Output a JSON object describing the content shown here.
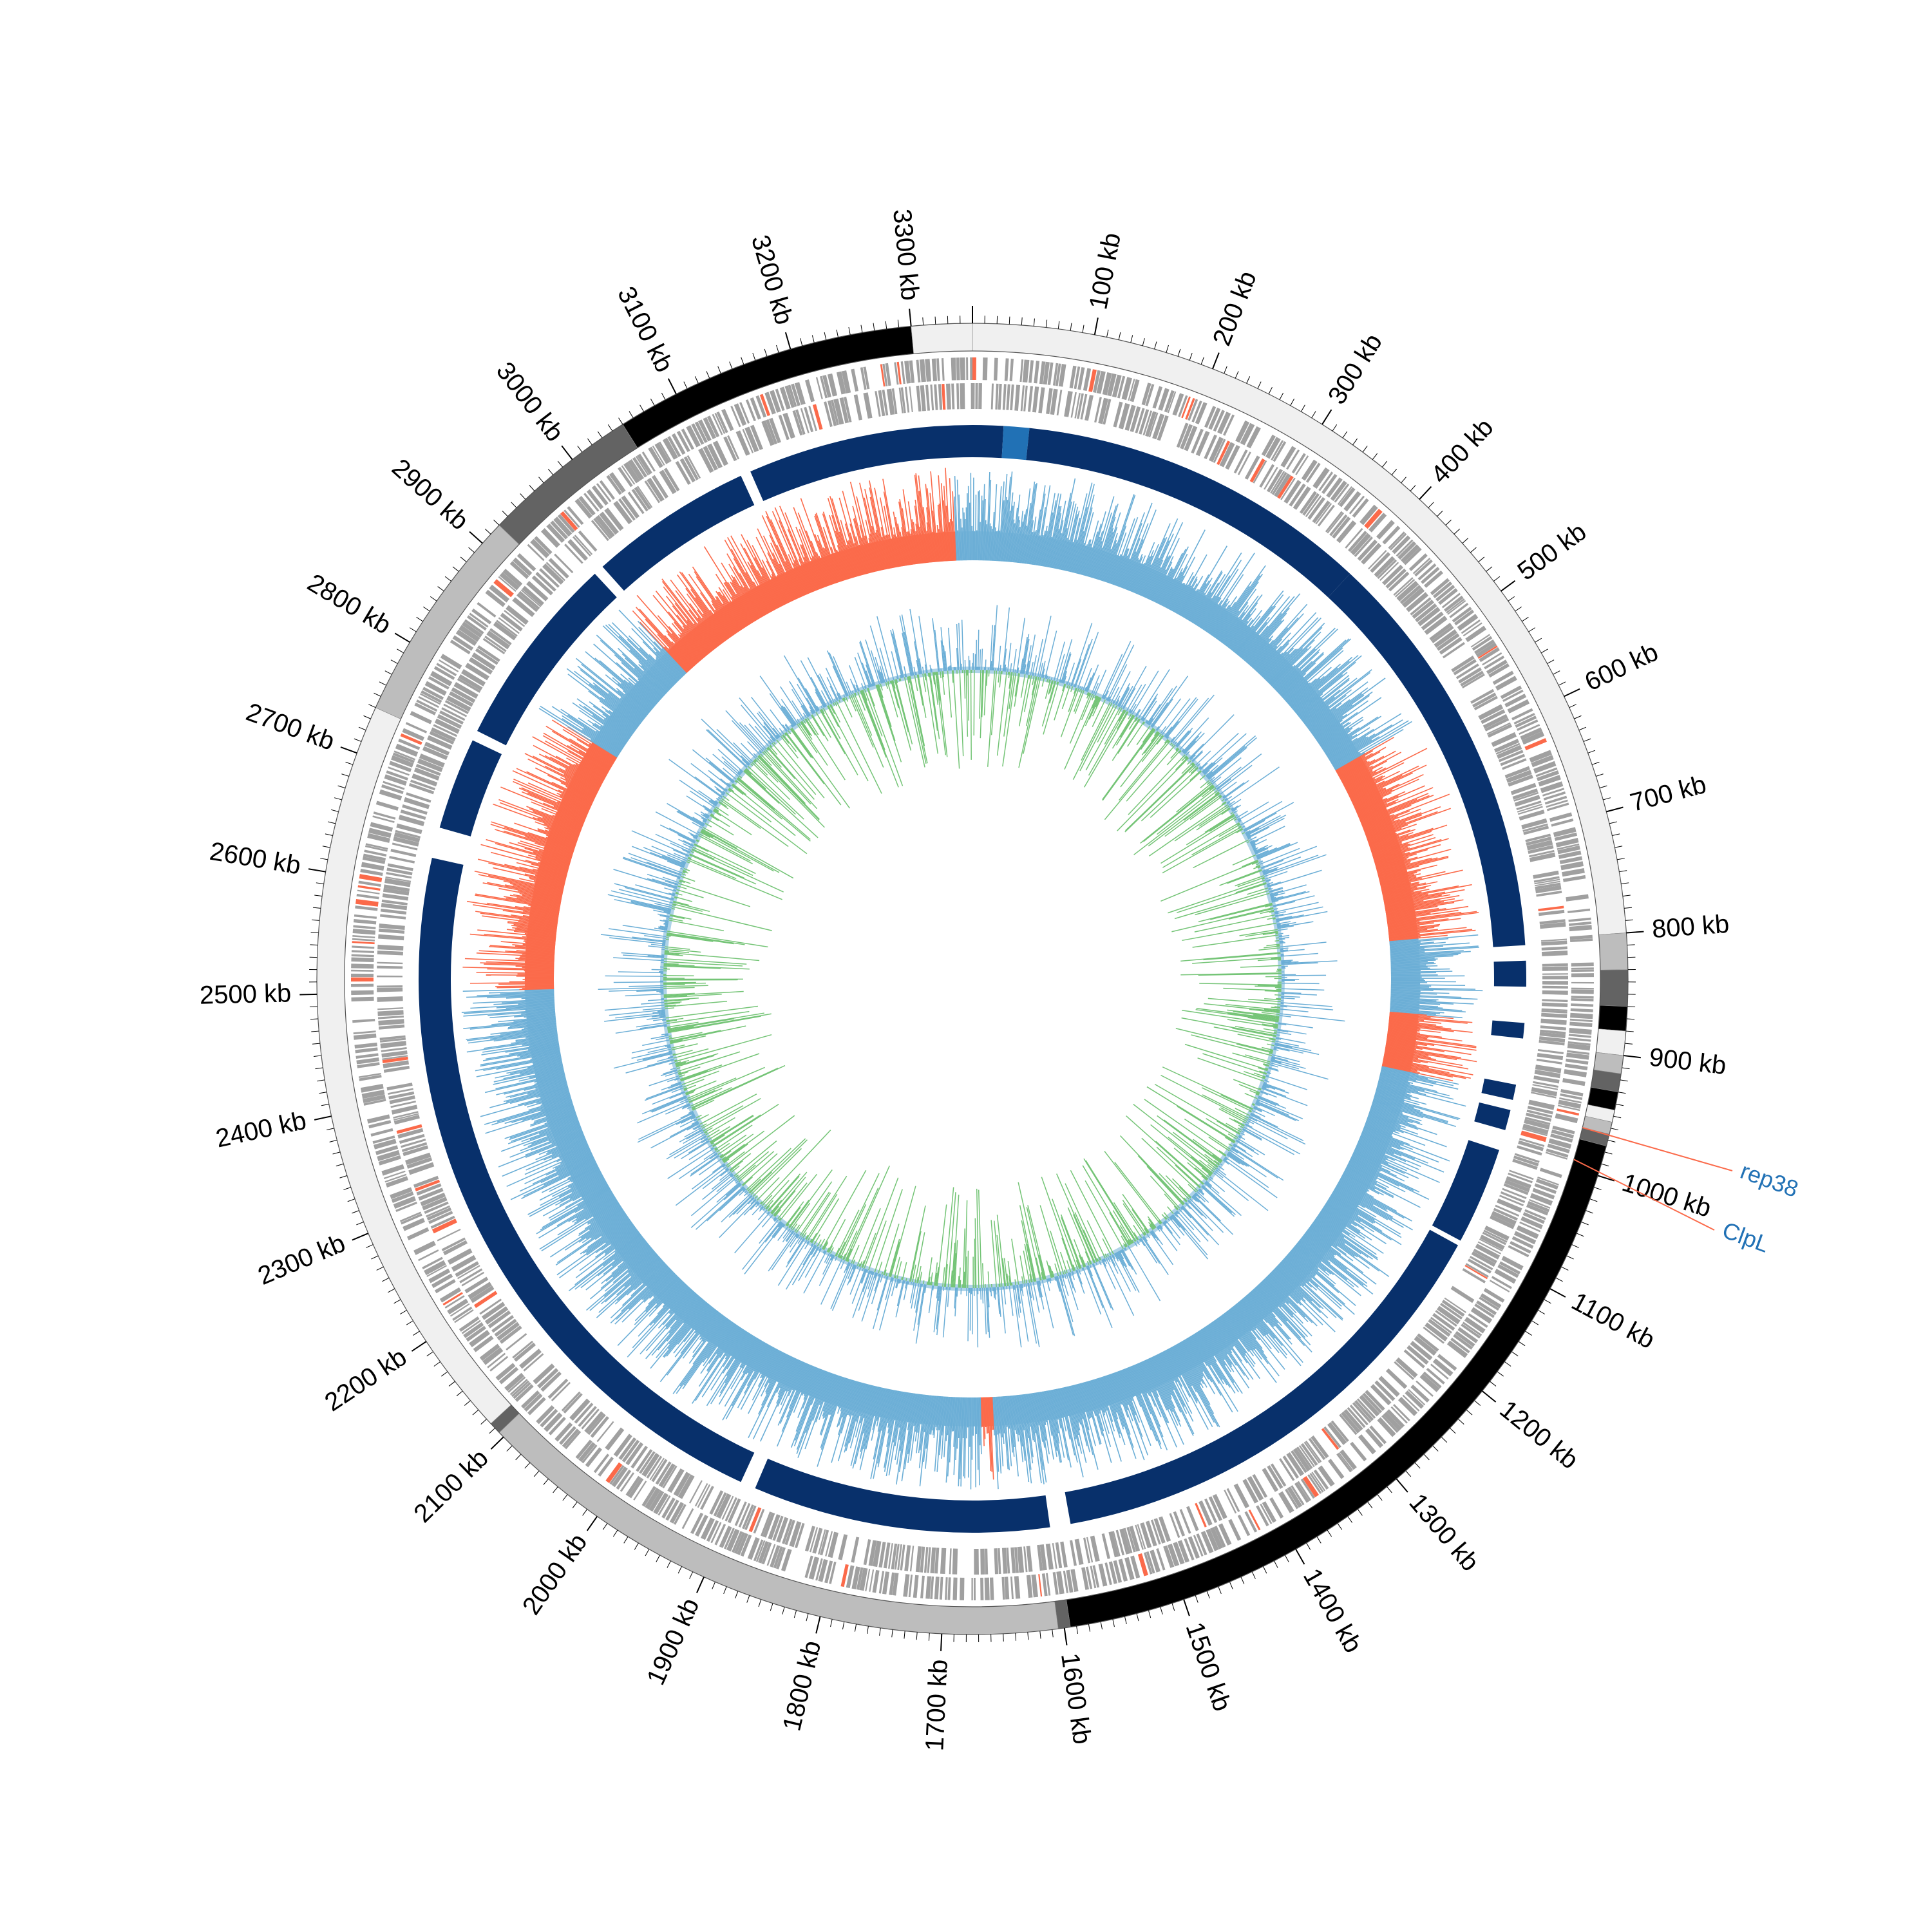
{
  "genome": {
    "length_kb": 3350,
    "tick_labels": [
      "100 kb",
      "200 kb",
      "300 kb",
      "400 kb",
      "500 kb",
      "600 kb",
      "700 kb",
      "800 kb",
      "900 kb",
      "1000 kb",
      "1100 kb",
      "1200 kb",
      "1300 kb",
      "1400 kb",
      "1500 kb",
      "1600 kb",
      "1700 kb",
      "1800 kb",
      "1900 kb",
      "2000 kb",
      "2100 kb",
      "2200 kb",
      "2300 kb",
      "2400 kb",
      "2500 kb",
      "2600 kb",
      "2700 kb",
      "2800 kb",
      "2900 kb",
      "3000 kb",
      "3100 kb",
      "3200 kb",
      "3300 kb"
    ],
    "tick_values_kb": [
      100,
      200,
      300,
      400,
      500,
      600,
      700,
      800,
      900,
      1000,
      1100,
      1200,
      1300,
      1400,
      1500,
      1600,
      1700,
      1800,
      1900,
      2000,
      2100,
      2200,
      2300,
      2400,
      2500,
      2600,
      2700,
      2800,
      2900,
      3000,
      3100,
      3200,
      3300
    ]
  },
  "outer_segments": [
    {
      "start": 0,
      "end": 800,
      "color": "#f0f0f0"
    },
    {
      "start": 800,
      "end": 830,
      "color": "#bdbdbd"
    },
    {
      "start": 830,
      "end": 860,
      "color": "#636363"
    },
    {
      "start": 860,
      "end": 880,
      "color": "#000000"
    },
    {
      "start": 880,
      "end": 900,
      "color": "#f0f0f0"
    },
    {
      "start": 900,
      "end": 915,
      "color": "#bdbdbd"
    },
    {
      "start": 915,
      "end": 930,
      "color": "#636363"
    },
    {
      "start": 930,
      "end": 945,
      "color": "#000000"
    },
    {
      "start": 945,
      "end": 955,
      "color": "#f0f0f0"
    },
    {
      "start": 955,
      "end": 965,
      "color": "#bdbdbd"
    },
    {
      "start": 965,
      "end": 975,
      "color": "#636363"
    },
    {
      "start": 975,
      "end": 1595,
      "color": "#000000"
    },
    {
      "start": 1595,
      "end": 1605,
      "color": "#636363"
    },
    {
      "start": 1605,
      "end": 2105,
      "color": "#bdbdbd"
    },
    {
      "start": 2105,
      "end": 2115,
      "color": "#636363"
    },
    {
      "start": 2115,
      "end": 2740,
      "color": "#f0f0f0"
    },
    {
      "start": 2740,
      "end": 2920,
      "color": "#bdbdbd"
    },
    {
      "start": 2920,
      "end": 3050,
      "color": "#636363"
    },
    {
      "start": 3050,
      "end": 3300,
      "color": "#000000"
    },
    {
      "start": 3300,
      "end": 3350,
      "color": "#f0f0f0"
    }
  ],
  "blue_blocks": [
    {
      "start": 0,
      "end": 30,
      "color": "#08306b"
    },
    {
      "start": 30,
      "end": 55,
      "color": "#2171b5"
    },
    {
      "start": 55,
      "end": 400,
      "color": "#08306b"
    },
    {
      "start": 400,
      "end": 805,
      "color": "#08306b"
    },
    {
      "start": 820,
      "end": 845,
      "color": "#08306b"
    },
    {
      "start": 880,
      "end": 895,
      "color": "#08306b"
    },
    {
      "start": 940,
      "end": 955,
      "color": "#08306b"
    },
    {
      "start": 965,
      "end": 985,
      "color": "#08306b"
    },
    {
      "start": 1005,
      "end": 1100,
      "color": "#08306b"
    },
    {
      "start": 1105,
      "end": 1580,
      "color": "#08306b"
    },
    {
      "start": 1600,
      "end": 1890,
      "color": "#08306b"
    },
    {
      "start": 1905,
      "end": 2630,
      "color": "#08306b"
    },
    {
      "start": 2660,
      "end": 2750,
      "color": "#08306b"
    },
    {
      "start": 2760,
      "end": 2950,
      "color": "#08306b"
    },
    {
      "start": 2960,
      "end": 3120,
      "color": "#08306b"
    },
    {
      "start": 3130,
      "end": 3350,
      "color": "#08306b"
    }
  ],
  "gc_skew_segments": [
    {
      "start": 0,
      "end": 560,
      "color": "#6baed6"
    },
    {
      "start": 560,
      "end": 790,
      "color": "#fb6a4a"
    },
    {
      "start": 790,
      "end": 880,
      "color": "#6baed6"
    },
    {
      "start": 880,
      "end": 950,
      "color": "#fb6a4a"
    },
    {
      "start": 950,
      "end": 1650,
      "color": "#6baed6"
    },
    {
      "start": 1650,
      "end": 1665,
      "color": "#fb6a4a"
    },
    {
      "start": 1665,
      "end": 2500,
      "color": "#6baed6"
    },
    {
      "start": 2500,
      "end": 2810,
      "color": "#fb6a4a"
    },
    {
      "start": 2810,
      "end": 2950,
      "color": "#6baed6"
    },
    {
      "start": 2950,
      "end": 3330,
      "color": "#fb6a4a"
    },
    {
      "start": 3330,
      "end": 3350,
      "color": "#6baed6"
    }
  ],
  "colors": {
    "gene_track": "#a0a0a0",
    "gene_highlight": "#fb6a4a",
    "gc_content_light": "#9ecae1",
    "gc_content_line": "#6baed6",
    "inner_green": "#74c476",
    "inner_blue": "#6baed6",
    "annotation_line": "#fb6a4a",
    "annotation_text": "#2171b5"
  },
  "annotations": [
    {
      "label": "rep38",
      "position_kb": 965
    },
    {
      "label": "ClpL",
      "position_kb": 993
    }
  ]
}
